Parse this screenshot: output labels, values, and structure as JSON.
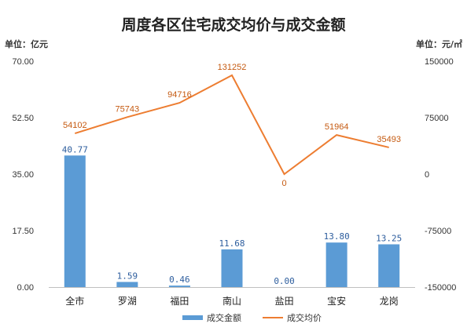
{
  "chart_data": {
    "type": "bar+line",
    "title": "周度各区住宅成交均价与成交金额",
    "left_unit": "单位：亿元",
    "right_unit": "单位：元/㎡",
    "categories": [
      "全市",
      "罗湖",
      "福田",
      "南山",
      "盐田",
      "宝安",
      "龙岗"
    ],
    "series": [
      {
        "name": "成交金额",
        "type": "bar",
        "axis": "left",
        "values": [
          40.77,
          1.59,
          0.46,
          11.68,
          0.0,
          13.8,
          13.25
        ],
        "labels": [
          "40.77",
          "1.59",
          "0.46",
          "11.68",
          "0.00",
          "13.80",
          "13.25"
        ],
        "color": "#5b9bd5",
        "label_color": "#2e5e9e"
      },
      {
        "name": "成交均价",
        "type": "line",
        "axis": "right",
        "values": [
          54102,
          75743,
          94716,
          131252,
          0,
          51964,
          35493
        ],
        "labels": [
          "54102",
          "75743",
          "94716",
          "131252",
          "0",
          "51964",
          "35493"
        ],
        "color": "#ed7d31",
        "label_color": "#c55a11"
      }
    ],
    "left_axis": {
      "min": 0,
      "max": 70,
      "ticks": [
        "0.00",
        "17.50",
        "35.00",
        "52.50",
        "70.00"
      ]
    },
    "right_axis": {
      "min": -150000,
      "max": 150000,
      "ticks": [
        "-150000",
        "-75000",
        "0",
        "75000",
        "150000"
      ]
    },
    "grid": false,
    "legend_position": "bottom"
  }
}
